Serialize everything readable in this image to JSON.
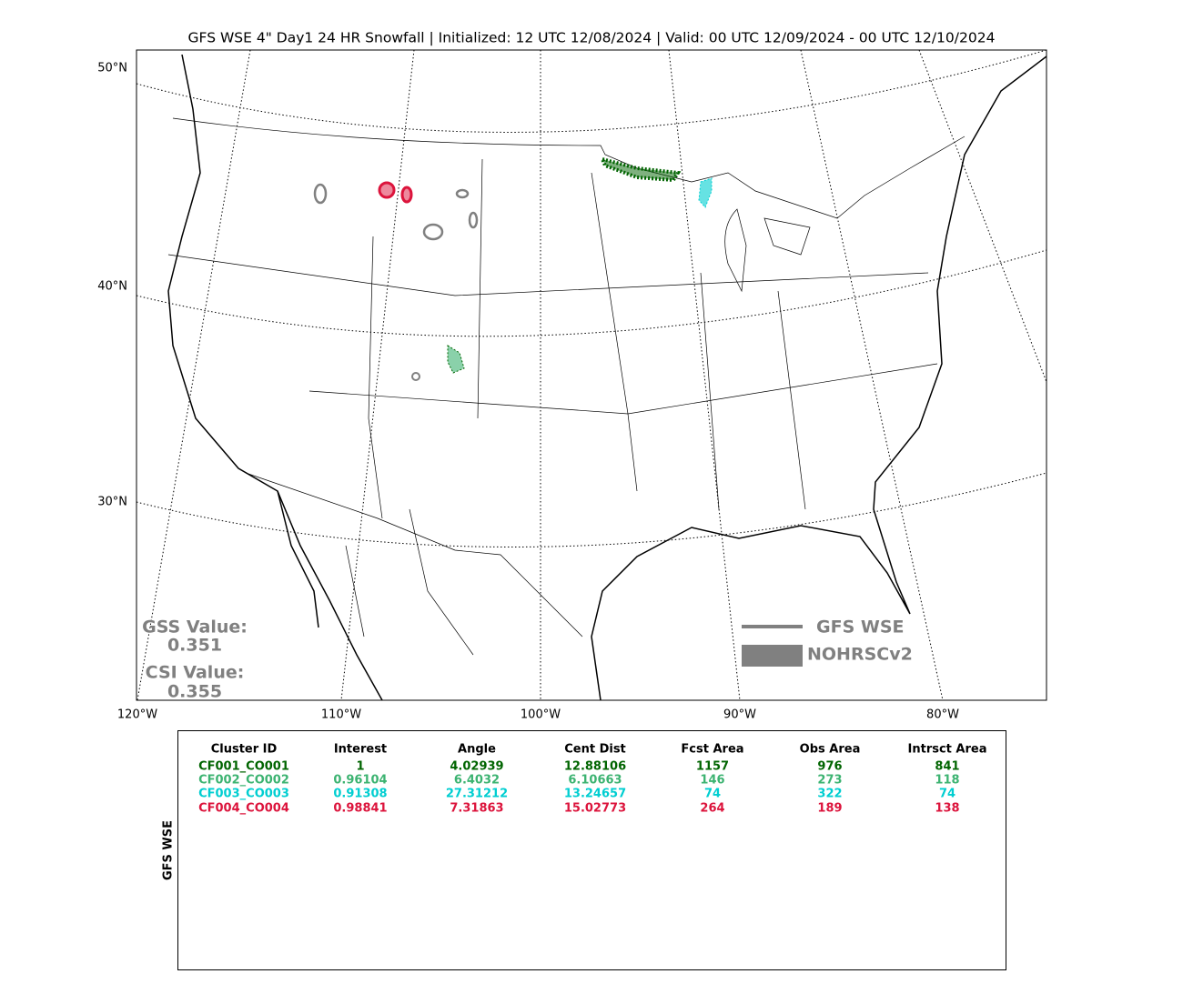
{
  "title": "GFS WSE 4\" Day1 24 HR Snowfall | Initialized: 12 UTC 12/08/2024 | Valid: 00 UTC 12/09/2024 - 00 UTC 12/10/2024",
  "map": {
    "lat_labels": [
      "50°N",
      "40°N",
      "30°N"
    ],
    "lon_labels": [
      "120°W",
      "110°W",
      "100°W",
      "90°W",
      "80°W"
    ],
    "scores": [
      {
        "label": "GSS Value:",
        "value": "0.351"
      },
      {
        "label": "CSI Value:",
        "value": "0.355"
      }
    ],
    "legend": [
      {
        "name": "GFS WSE",
        "color": "#808080"
      },
      {
        "name": "NOHRSCv2",
        "color": "#808080"
      }
    ]
  },
  "table": {
    "side_label": "GFS WSE",
    "columns": [
      "Cluster ID",
      "Interest",
      "Angle",
      "Cent Dist",
      "Fcst Area",
      "Obs Area",
      "Intrsct Area"
    ],
    "rows": [
      {
        "color": "#006400",
        "cells": [
          "CF001_CO001",
          1,
          4.02939,
          12.88106,
          1157,
          976,
          841
        ]
      },
      {
        "color": "#3cb371",
        "cells": [
          "CF002_CO002",
          0.96104,
          6.4032,
          6.10663,
          146,
          273,
          118
        ]
      },
      {
        "color": "#00ced1",
        "cells": [
          "CF003_CO003",
          0.91308,
          27.31212,
          13.24657,
          74,
          322,
          74
        ]
      },
      {
        "color": "#dc143c",
        "cells": [
          "CF004_CO004",
          0.98841,
          7.31863,
          15.02773,
          264,
          189,
          138
        ]
      }
    ]
  }
}
